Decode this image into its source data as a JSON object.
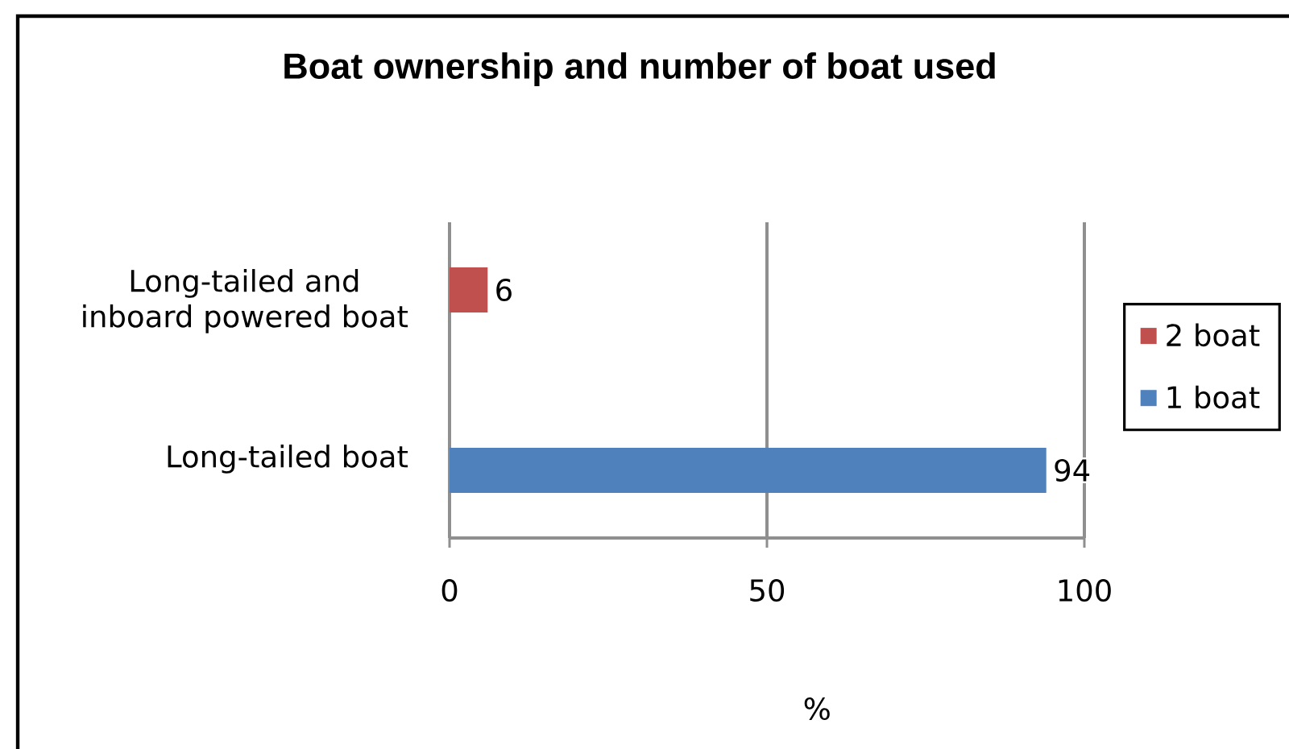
{
  "chart_data": {
    "type": "bar",
    "orientation": "horizontal",
    "title": "Boat ownership and number of boat used",
    "xlabel": "%",
    "categories": [
      "Long-tailed and inboard powered boat",
      "Long-tailed boat"
    ],
    "series": [
      {
        "name": "2 boat",
        "color": "#c0504d",
        "values": [
          6,
          null
        ]
      },
      {
        "name": "1 boat",
        "color": "#4f81bd",
        "values": [
          null,
          94
        ]
      }
    ],
    "xlim": [
      0,
      100
    ],
    "xticks": [
      0,
      50,
      100
    ],
    "grid": "x",
    "legend": "right",
    "data_labels": true
  }
}
